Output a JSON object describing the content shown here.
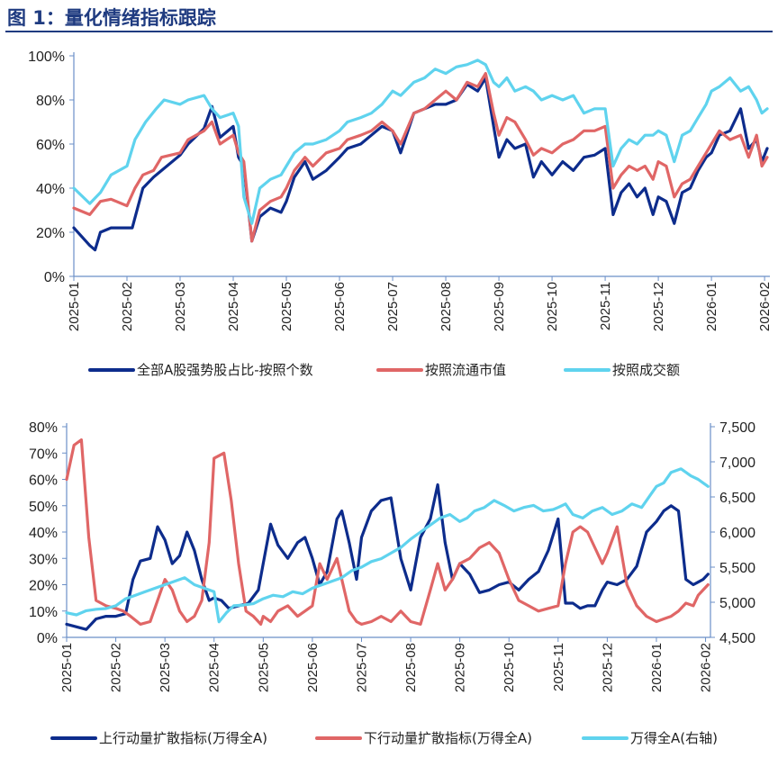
{
  "header": {
    "title": "图 1：量化情绪指标跟踪"
  },
  "colors": {
    "navy": "#0d2c8c",
    "red": "#e06666",
    "cyan": "#5fd3ee",
    "rule": "#1f3b80"
  },
  "chart_data": [
    {
      "type": "line",
      "y_tick_labels": [
        "0%",
        "20%",
        "40%",
        "60%",
        "80%",
        "100%"
      ],
      "ylim": [
        0,
        100
      ],
      "x_tick_labels": [
        "2025-01",
        "2025-02",
        "2025-03",
        "2025-04",
        "2025-05",
        "2025-06",
        "2025-07",
        "2025-08",
        "2025-09",
        "2025-10",
        "2025-11",
        "2025-12",
        "2026-01",
        "2026-02"
      ],
      "xlim": [
        0,
        13.1
      ],
      "legend_position": "bottom",
      "series": [
        {
          "name": "全部A股强势股占比-按照个数",
          "color": "#0d2c8c",
          "x": [
            0,
            0.3,
            0.4,
            0.5,
            0.7,
            1,
            1.1,
            1.3,
            1.5,
            1.65,
            2,
            2.15,
            2.45,
            2.6,
            2.75,
            3,
            3.1,
            3.2,
            3.35,
            3.5,
            3.7,
            3.9,
            4,
            4.15,
            4.35,
            4.5,
            4.75,
            5,
            5.15,
            5.4,
            5.6,
            5.8,
            6,
            6.15,
            6.4,
            6.6,
            6.8,
            7,
            7.2,
            7.4,
            7.6,
            7.75,
            7.9,
            8,
            8.15,
            8.3,
            8.5,
            8.65,
            8.8,
            9,
            9.2,
            9.4,
            9.6,
            9.8,
            10,
            10.15,
            10.3,
            10.45,
            10.6,
            10.75,
            10.9,
            11,
            11.15,
            11.3,
            11.45,
            11.6,
            11.75,
            11.9,
            12,
            12.15,
            12.35,
            12.55,
            12.7,
            12.85,
            12.95,
            13.05
          ],
          "y": [
            22,
            14,
            12,
            20,
            22,
            22,
            22,
            40,
            45,
            48,
            55,
            60,
            67,
            77,
            63,
            68,
            54,
            50,
            16,
            27,
            31,
            29,
            34,
            45,
            52,
            44,
            48,
            54,
            58,
            60,
            64,
            68,
            66,
            56,
            74,
            76,
            78,
            78,
            80,
            87,
            84,
            90,
            68,
            54,
            62,
            58,
            60,
            45,
            52,
            46,
            52,
            48,
            54,
            55,
            58,
            28,
            38,
            42,
            36,
            40,
            28,
            36,
            34,
            24,
            38,
            40,
            48,
            54,
            56,
            64,
            66,
            76,
            58,
            62,
            52,
            58
          ]
        },
        {
          "name": "按照流通市值",
          "color": "#e06666",
          "x": [
            0,
            0.3,
            0.5,
            0.7,
            1,
            1.15,
            1.3,
            1.5,
            1.65,
            2,
            2.15,
            2.45,
            2.6,
            2.75,
            3,
            3.1,
            3.2,
            3.35,
            3.5,
            3.7,
            3.9,
            4,
            4.15,
            4.35,
            4.5,
            4.75,
            5,
            5.15,
            5.4,
            5.6,
            5.8,
            6,
            6.15,
            6.4,
            6.6,
            6.8,
            7,
            7.2,
            7.4,
            7.6,
            7.75,
            7.9,
            8,
            8.15,
            8.3,
            8.5,
            8.65,
            8.8,
            9,
            9.2,
            9.4,
            9.6,
            9.8,
            10,
            10.15,
            10.3,
            10.45,
            10.6,
            10.75,
            10.9,
            11,
            11.15,
            11.3,
            11.45,
            11.6,
            11.75,
            11.9,
            12,
            12.15,
            12.35,
            12.55,
            12.7,
            12.85,
            12.95,
            13.05
          ],
          "y": [
            31,
            28,
            34,
            35,
            32,
            40,
            46,
            48,
            54,
            56,
            62,
            66,
            70,
            60,
            64,
            56,
            52,
            16,
            30,
            34,
            36,
            40,
            48,
            54,
            50,
            56,
            58,
            62,
            64,
            66,
            70,
            66,
            60,
            74,
            76,
            80,
            84,
            80,
            88,
            86,
            92,
            74,
            64,
            72,
            70,
            62,
            55,
            58,
            56,
            60,
            62,
            66,
            66,
            68,
            40,
            46,
            50,
            48,
            50,
            44,
            52,
            50,
            36,
            42,
            44,
            50,
            56,
            60,
            66,
            62,
            64,
            54,
            64,
            50,
            54
          ]
        },
        {
          "name": "按照成交额",
          "color": "#5fd3ee",
          "x": [
            0,
            0.3,
            0.5,
            0.7,
            1,
            1.15,
            1.35,
            1.55,
            1.7,
            2,
            2.15,
            2.45,
            2.6,
            2.75,
            3,
            3.1,
            3.2,
            3.35,
            3.5,
            3.7,
            3.9,
            4,
            4.15,
            4.35,
            4.5,
            4.75,
            5,
            5.15,
            5.4,
            5.6,
            5.8,
            6,
            6.15,
            6.4,
            6.6,
            6.8,
            7,
            7.2,
            7.4,
            7.6,
            7.75,
            7.9,
            8,
            8.15,
            8.3,
            8.5,
            8.65,
            8.8,
            9,
            9.2,
            9.4,
            9.6,
            9.8,
            10,
            10.15,
            10.3,
            10.45,
            10.6,
            10.75,
            10.9,
            11,
            11.15,
            11.3,
            11.45,
            11.6,
            11.75,
            11.9,
            12,
            12.15,
            12.35,
            12.55,
            12.7,
            12.85,
            12.95,
            13.05
          ],
          "y": [
            40,
            33,
            38,
            46,
            50,
            62,
            70,
            76,
            80,
            78,
            80,
            82,
            76,
            72,
            74,
            68,
            36,
            24,
            40,
            44,
            46,
            50,
            56,
            60,
            60,
            62,
            66,
            70,
            72,
            74,
            78,
            84,
            82,
            88,
            90,
            94,
            92,
            95,
            96,
            98,
            96,
            88,
            86,
            90,
            84,
            86,
            84,
            80,
            82,
            80,
            82,
            74,
            76,
            76,
            50,
            58,
            62,
            60,
            64,
            64,
            66,
            64,
            52,
            64,
            66,
            72,
            78,
            84,
            86,
            90,
            84,
            86,
            80,
            74,
            76
          ]
        }
      ]
    },
    {
      "type": "line",
      "y_tick_labels": [
        "0%",
        "10%",
        "20%",
        "30%",
        "40%",
        "50%",
        "60%",
        "70%",
        "80%"
      ],
      "ylim": [
        0,
        80
      ],
      "y2_tick_labels": [
        "4,500",
        "5,000",
        "5,500",
        "6,000",
        "6,500",
        "7,000",
        "7,500"
      ],
      "y2lim": [
        4500,
        7500
      ],
      "x_tick_labels": [
        "2025-01",
        "2025-02",
        "2025-03",
        "2025-04",
        "2025-05",
        "2025-06",
        "2025-07",
        "2025-08",
        "2025-09",
        "2025-10",
        "2025-11",
        "2025-12",
        "2026-01",
        "2026-02"
      ],
      "xlim": [
        0,
        13.1
      ],
      "legend_position": "bottom",
      "series": [
        {
          "name": "上行动量扩散指标(万得全A)",
          "axis": "left",
          "color": "#0d2c8c",
          "x": [
            0,
            0.2,
            0.4,
            0.6,
            0.8,
            1,
            1.2,
            1.35,
            1.5,
            1.7,
            1.85,
            2,
            2.15,
            2.3,
            2.45,
            2.6,
            2.75,
            2.9,
            3,
            3.15,
            3.3,
            3.5,
            3.7,
            3.9,
            4,
            4.15,
            4.3,
            4.5,
            4.7,
            4.85,
            5,
            5.15,
            5.3,
            5.5,
            5.6,
            5.75,
            5.9,
            6,
            6.2,
            6.4,
            6.6,
            6.8,
            7,
            7.2,
            7.4,
            7.55,
            7.7,
            7.85,
            8,
            8.2,
            8.4,
            8.6,
            8.8,
            9,
            9.2,
            9.4,
            9.6,
            9.8,
            10,
            10.15,
            10.3,
            10.45,
            10.6,
            10.75,
            10.9,
            11,
            11.2,
            11.4,
            11.6,
            11.8,
            12,
            12.15,
            12.3,
            12.45,
            12.6,
            12.75,
            12.85,
            12.95,
            13.05
          ],
          "y": [
            5,
            4,
            3,
            7,
            8,
            8,
            9,
            22,
            29,
            30,
            42,
            37,
            28,
            31,
            40,
            33,
            22,
            14,
            15,
            14,
            11,
            12,
            13,
            18,
            28,
            43,
            35,
            30,
            36,
            38,
            30,
            20,
            25,
            45,
            48,
            36,
            22,
            38,
            48,
            52,
            53,
            30,
            18,
            38,
            45,
            58,
            36,
            22,
            28,
            24,
            17,
            18,
            20,
            21,
            18,
            22,
            25,
            33,
            45,
            13,
            13,
            11,
            12,
            12,
            18,
            21,
            20,
            22,
            27,
            40,
            44,
            48,
            50,
            48,
            22,
            20,
            21,
            22,
            24
          ]
        },
        {
          "name": "下行动量扩散指标(万得全A)",
          "axis": "left",
          "color": "#e06666",
          "x": [
            0,
            0.15,
            0.3,
            0.45,
            0.6,
            0.8,
            1,
            1.15,
            1.3,
            1.5,
            1.7,
            1.85,
            2,
            2.15,
            2.3,
            2.45,
            2.6,
            2.75,
            2.9,
            3,
            3.2,
            3.35,
            3.5,
            3.65,
            3.8,
            3.95,
            4,
            4.15,
            4.3,
            4.5,
            4.7,
            4.85,
            5,
            5.15,
            5.3,
            5.5,
            5.6,
            5.75,
            5.9,
            6,
            6.2,
            6.4,
            6.6,
            6.8,
            7,
            7.2,
            7.4,
            7.55,
            7.7,
            7.85,
            8,
            8.2,
            8.4,
            8.6,
            8.8,
            9,
            9.2,
            9.4,
            9.6,
            9.8,
            10,
            10.15,
            10.3,
            10.45,
            10.6,
            10.75,
            10.9,
            11,
            11.2,
            11.4,
            11.6,
            11.8,
            12,
            12.15,
            12.3,
            12.45,
            12.6,
            12.75,
            12.85,
            12.95,
            13.05
          ],
          "y": [
            60,
            73,
            75,
            38,
            14,
            12,
            11,
            10,
            8,
            5,
            6,
            14,
            22,
            18,
            10,
            6,
            8,
            14,
            36,
            68,
            70,
            52,
            28,
            10,
            8,
            5,
            8,
            6,
            10,
            12,
            8,
            10,
            12,
            28,
            22,
            30,
            22,
            10,
            6,
            5,
            6,
            8,
            6,
            10,
            6,
            5,
            18,
            28,
            18,
            22,
            28,
            30,
            34,
            36,
            32,
            22,
            14,
            12,
            10,
            11,
            12,
            28,
            40,
            42,
            40,
            34,
            28,
            32,
            42,
            20,
            12,
            8,
            6,
            7,
            8,
            10,
            13,
            12,
            16,
            18,
            20
          ]
        },
        {
          "name": "万得全A(右轴)",
          "axis": "right",
          "color": "#5fd3ee",
          "x": [
            0,
            0.2,
            0.4,
            0.6,
            0.8,
            1,
            1.2,
            1.4,
            1.6,
            1.8,
            2,
            2.2,
            2.4,
            2.6,
            2.8,
            3,
            3.1,
            3.25,
            3.4,
            3.6,
            3.8,
            4,
            4.2,
            4.4,
            4.6,
            4.8,
            5,
            5.2,
            5.4,
            5.6,
            5.8,
            6,
            6.2,
            6.4,
            6.6,
            6.8,
            7,
            7.2,
            7.4,
            7.6,
            7.8,
            8,
            8.15,
            8.3,
            8.5,
            8.7,
            8.9,
            9.1,
            9.3,
            9.5,
            9.7,
            9.9,
            10,
            10.15,
            10.3,
            10.5,
            10.7,
            10.9,
            11.1,
            11.3,
            11.5,
            11.7,
            11.9,
            12,
            12.15,
            12.3,
            12.5,
            12.7,
            12.85,
            12.95,
            13.05
          ],
          "y": [
            4850,
            4820,
            4880,
            4900,
            4910,
            4950,
            5050,
            5100,
            5150,
            5200,
            5250,
            5300,
            5350,
            5250,
            5200,
            5150,
            4720,
            4850,
            4950,
            4960,
            4980,
            5050,
            5100,
            5080,
            5150,
            5120,
            5200,
            5250,
            5300,
            5350,
            5450,
            5500,
            5580,
            5620,
            5700,
            5780,
            5900,
            6000,
            6100,
            6200,
            6250,
            6150,
            6200,
            6300,
            6350,
            6450,
            6380,
            6300,
            6350,
            6380,
            6300,
            6320,
            6350,
            6400,
            6250,
            6200,
            6300,
            6350,
            6250,
            6300,
            6400,
            6350,
            6550,
            6650,
            6700,
            6850,
            6900,
            6800,
            6750,
            6700,
            6650
          ]
        }
      ]
    }
  ]
}
